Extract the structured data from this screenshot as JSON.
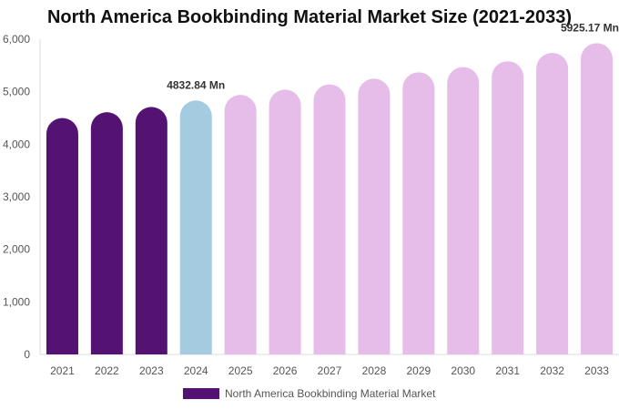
{
  "chart_data": {
    "type": "bar",
    "title": "North America Bookbinding Material Market Size (2021-2033)",
    "xlabel": "",
    "ylabel": "",
    "ylim": [
      0,
      6000
    ],
    "yticks": [
      "0",
      "1,000",
      "2,000",
      "3,000",
      "4,000",
      "5,000",
      "6,000"
    ],
    "categories": [
      "2021",
      "2022",
      "2023",
      "2024",
      "2025",
      "2026",
      "2027",
      "2028",
      "2029",
      "2030",
      "2031",
      "2032",
      "2033"
    ],
    "series": [
      {
        "name": "North America Bookbinding Material Market",
        "values": [
          4500,
          4610,
          4710,
          4832.84,
          4940,
          5040,
          5140,
          5250,
          5370,
          5470,
          5580,
          5740,
          5925.17
        ]
      }
    ],
    "bar_colors": [
      "#541273",
      "#541273",
      "#541273",
      "#a4cbe0",
      "#e6bce8",
      "#e6bce8",
      "#e6bce8",
      "#e6bce8",
      "#e6bce8",
      "#e6bce8",
      "#e6bce8",
      "#e6bce8",
      "#e6bce8"
    ],
    "legend_color": "#541273",
    "legend_position": "bottom",
    "grid": false,
    "annotations": [
      {
        "category": "2024",
        "text": "4832.84 Mn"
      },
      {
        "category": "2033",
        "text": "5925.17 Mn"
      }
    ]
  }
}
